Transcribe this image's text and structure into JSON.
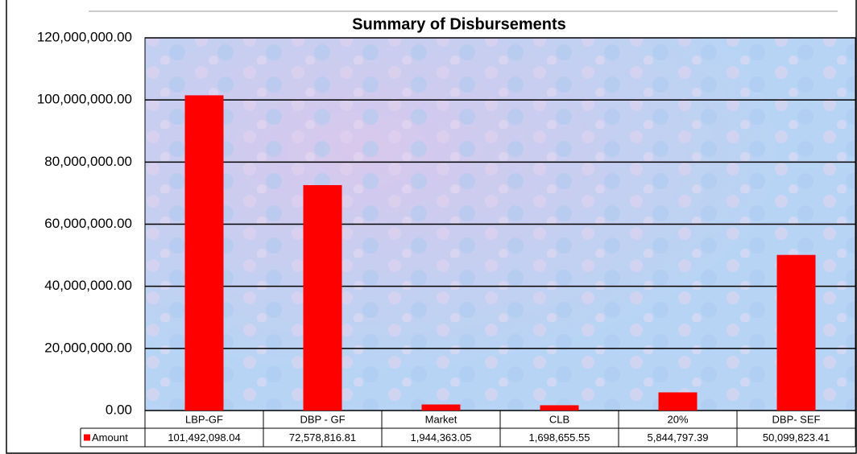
{
  "chart_data": {
    "type": "bar",
    "title": "Summary of Disbursements",
    "categories": [
      "LBP-GF",
      "DBP - GF",
      "Market",
      "CLB",
      "20%",
      "DBP- SEF"
    ],
    "series": [
      {
        "name": "Amount",
        "color": "#ff0000",
        "values": [
          101492098.04,
          72578816.81,
          1944363.05,
          1698655.55,
          5844797.39,
          50099823.41
        ],
        "value_labels": [
          "101,492,098.04",
          "72,578,816.81",
          "1,944,363.05",
          "1,698,655.55",
          "5,844,797.39",
          "50,099,823.41"
        ]
      }
    ],
    "ylim": [
      0,
      120000000
    ],
    "yticks": [
      {
        "value": 0,
        "label": "0.00"
      },
      {
        "value": 20000000,
        "label": "20,000,000.00"
      },
      {
        "value": 40000000,
        "label": "40,000,000.00"
      },
      {
        "value": 60000000,
        "label": "60,000,000.00"
      },
      {
        "value": 80000000,
        "label": "80,000,000.00"
      },
      {
        "value": 100000000,
        "label": "100,000,000.00"
      },
      {
        "value": 120000000,
        "label": "120,000,000.00"
      }
    ],
    "grid": true
  }
}
